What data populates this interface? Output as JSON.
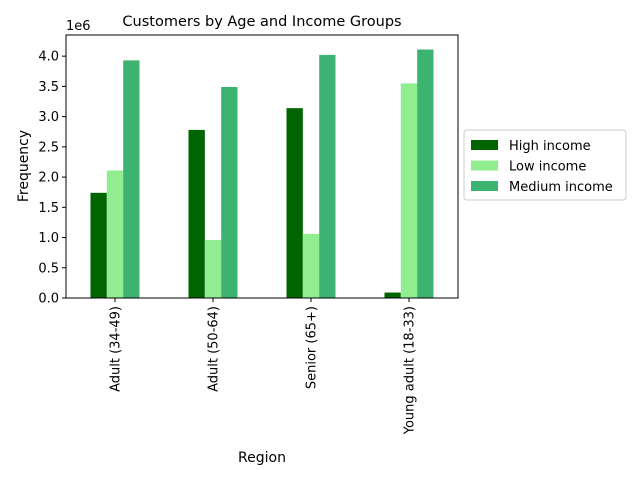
{
  "chart_data": {
    "type": "bar",
    "title": "Customers by Age and Income Groups",
    "xlabel": "Region",
    "ylabel": "Frequency",
    "offset_text": "1e6",
    "ylim": [
      0,
      4350000
    ],
    "yticks": [
      0,
      500000,
      1000000,
      1500000,
      2000000,
      2500000,
      3000000,
      3500000,
      4000000
    ],
    "ytick_labels": [
      "0.0",
      "0.5",
      "1.0",
      "1.5",
      "2.0",
      "2.5",
      "3.0",
      "3.5",
      "4.0"
    ],
    "categories": [
      "Adult (34-49)",
      "Adult (50-64)",
      "Senior (65+)",
      "Young adult (18-33)"
    ],
    "series": [
      {
        "name": "High income",
        "color": "#006400",
        "values": [
          1740000,
          2780000,
          3140000,
          90000
        ]
      },
      {
        "name": "Low income",
        "color": "#90ee90",
        "values": [
          2110000,
          960000,
          1060000,
          3550000
        ]
      },
      {
        "name": "Medium income",
        "color": "#3cb371",
        "values": [
          3930000,
          3490000,
          4020000,
          4110000
        ]
      }
    ],
    "grid": false,
    "legend_position": "center-right outside"
  }
}
